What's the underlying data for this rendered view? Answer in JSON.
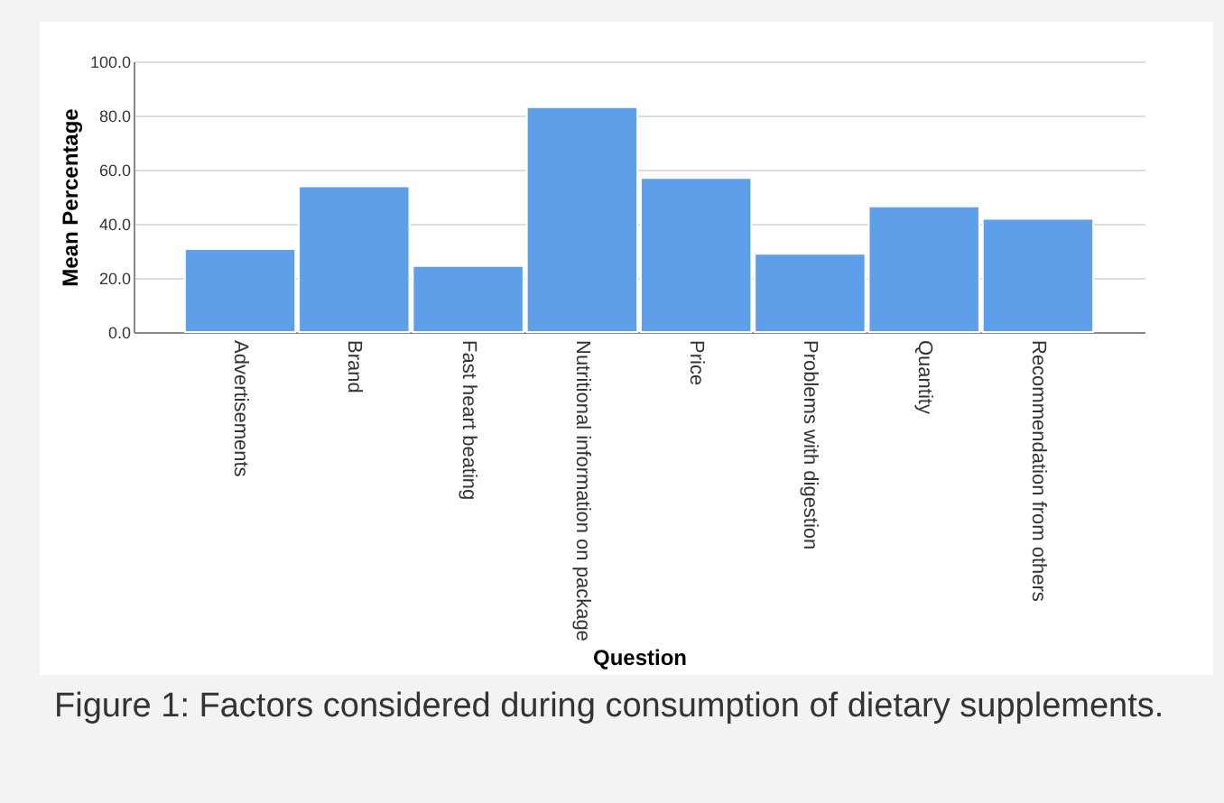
{
  "chart_data": {
    "type": "bar",
    "xlabel": "Question",
    "ylabel": "Mean Percentage",
    "categories": [
      "Advertisements",
      "Brand",
      "Fast heart beating",
      "Nutritional information on package",
      "Price",
      "Problems with digestion",
      "Quantity",
      "Recommendation from others"
    ],
    "values": [
      30.7,
      53.8,
      24.4,
      83.1,
      56.9,
      28.9,
      46.4,
      41.8
    ],
    "color": "#5f9ee8",
    "ylim": [
      0,
      100
    ],
    "yticks": [
      {
        "value": 0,
        "label": "0.0"
      },
      {
        "value": 20,
        "label": "20.0"
      },
      {
        "value": 40,
        "label": "40.0"
      },
      {
        "value": 60,
        "label": "60.0"
      },
      {
        "value": 80,
        "label": "80.0"
      },
      {
        "value": 100,
        "label": "100.0"
      }
    ],
    "grid": "y",
    "annotations": [
      "Figure 1: Factors considered during consumption of dietary supplements."
    ]
  }
}
